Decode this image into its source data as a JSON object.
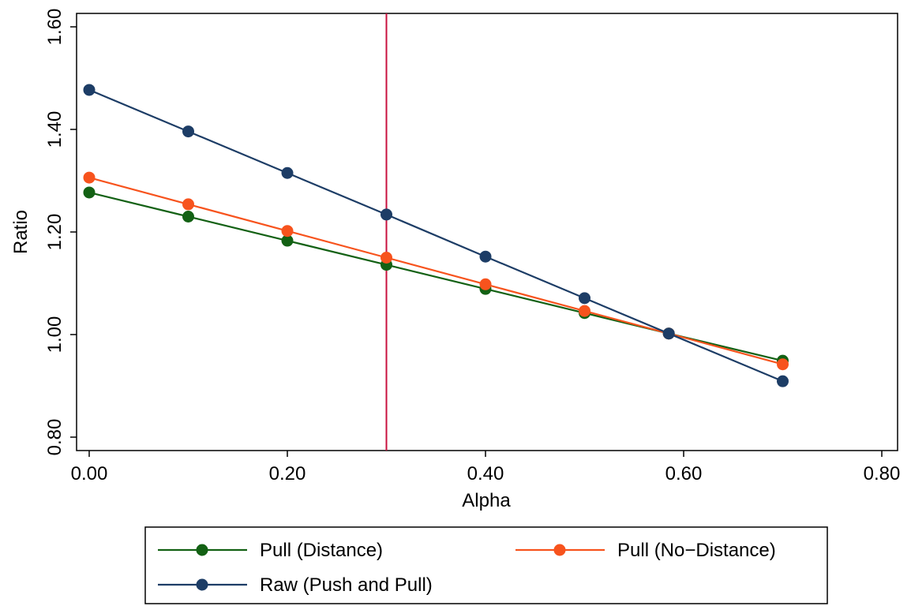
{
  "chart_data": {
    "type": "line",
    "xlabel": "Alpha",
    "ylabel": "Ratio",
    "xlim": [
      0,
      0.8
    ],
    "ylim": [
      0.8,
      1.6
    ],
    "xticks": [
      "0.00",
      "0.20",
      "0.40",
      "0.60",
      "0.80"
    ],
    "yticks": [
      "0.80",
      "1.00",
      "1.20",
      "1.40",
      "1.60"
    ],
    "grid": false,
    "reference_line": {
      "x": 0.3,
      "color": "#c8103e"
    },
    "legend": {
      "placement": "bottom"
    },
    "series": [
      {
        "name": "Pull (Distance)",
        "color": "#136114",
        "x": [
          0,
          0.1,
          0.2,
          0.3,
          0.4,
          0.5,
          0.585,
          0.7
        ],
        "y": [
          1.277,
          1.23,
          1.183,
          1.136,
          1.089,
          1.042,
          1.002,
          0.949
        ]
      },
      {
        "name": "Pull (No−Distance)",
        "color": "#f7531d",
        "x": [
          0,
          0.1,
          0.2,
          0.3,
          0.4,
          0.5,
          0.585,
          0.7
        ],
        "y": [
          1.306,
          1.254,
          1.202,
          1.15,
          1.098,
          1.046,
          1.002,
          0.942
        ]
      },
      {
        "name": "Raw (Push and Pull)",
        "color": "#1d3d66",
        "x": [
          0,
          0.1,
          0.2,
          0.3,
          0.4,
          0.5,
          0.585,
          0.7
        ],
        "y": [
          1.477,
          1.396,
          1.315,
          1.234,
          1.152,
          1.071,
          1.002,
          0.909
        ]
      }
    ]
  }
}
